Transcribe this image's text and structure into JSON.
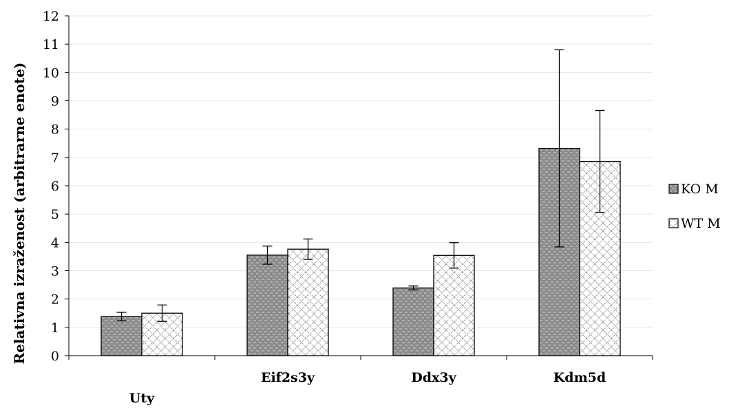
{
  "chart_data": {
    "type": "bar",
    "title": "",
    "xlabel": "",
    "ylabel": "Relativna izraženost (arbitrarne enote)",
    "categories": [
      "Uty",
      "Eif2s3y",
      "Ddx3y",
      "Kdm5d"
    ],
    "ylim": [
      0,
      12
    ],
    "yticks": [
      0,
      1,
      2,
      3,
      4,
      5,
      6,
      7,
      8,
      9,
      10,
      11,
      12
    ],
    "grid": true,
    "legend_position": "right",
    "series": [
      {
        "name": "KO M",
        "values": [
          1.38,
          3.55,
          2.39,
          7.32
        ],
        "errors": [
          0.15,
          0.32,
          0.07,
          3.48
        ],
        "pattern": "grey-dashed"
      },
      {
        "name": "WT M",
        "values": [
          1.5,
          3.76,
          3.54,
          6.86
        ],
        "errors": [
          0.29,
          0.36,
          0.45,
          1.8
        ],
        "pattern": "crosshatch"
      }
    ]
  }
}
